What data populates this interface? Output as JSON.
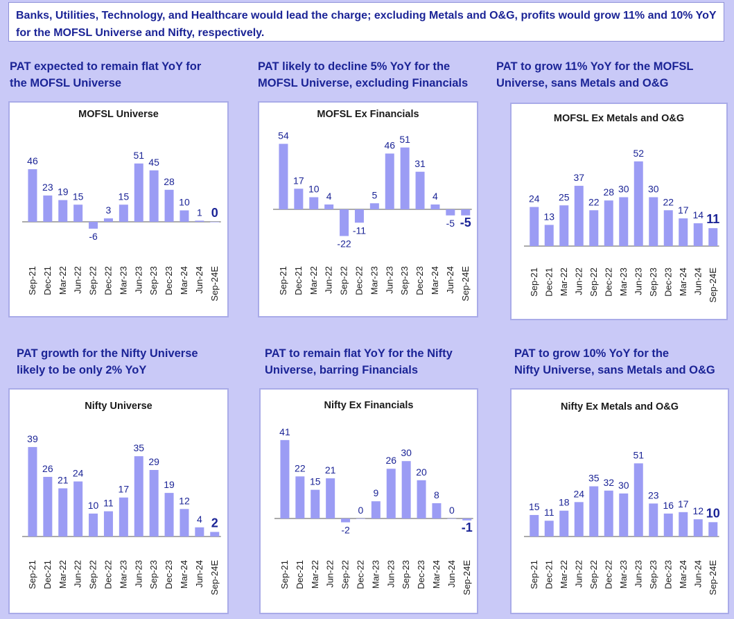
{
  "banner_text": "Banks, Utilities, Technology, and Healthcare would lead the charge; excluding Metals and O&G, profits would grow 11% and 10% YoY for the MOFSL Universe and Nifty, respectively.",
  "captions": [
    "PAT expected to remain flat YoY for\nthe MOFSL Universe",
    "PAT likely to decline 5% YoY for the\nMOFSL Universe, excluding Financials",
    "PAT to grow 11% YoY for the MOFSL\nUniverse, sans Metals and O&G",
    "PAT growth for the Nifty Universe\nlikely to be only 2% YoY",
    "PAT to remain flat YoY for the Nifty\nUniverse, barring Financials",
    "PAT to grow 10% YoY for the\nNifty  Universe, sans Metals and O&G"
  ],
  "colors": {
    "bar": "#9b9cf4",
    "label": "#1b2496",
    "axis": "#555555",
    "background": "#c9c9f7"
  },
  "chart_data": [
    {
      "type": "bar",
      "title": "MOFSL Universe",
      "categories": [
        "Sep-21",
        "Dec-21",
        "Mar-22",
        "Jun-22",
        "Sep-22",
        "Dec-22",
        "Mar-23",
        "Jun-23",
        "Sep-23",
        "Dec-23",
        "Mar-24",
        "Jun-24",
        "Sep-24E"
      ],
      "values": [
        46,
        23,
        19,
        15,
        -6,
        3,
        15,
        51,
        45,
        28,
        10,
        1,
        0
      ]
    },
    {
      "type": "bar",
      "title": "MOFSL Ex Financials",
      "categories": [
        "Sep-21",
        "Dec-21",
        "Mar-22",
        "Jun-22",
        "Sep-22",
        "Dec-22",
        "Mar-23",
        "Jun-23",
        "Sep-23",
        "Dec-23",
        "Mar-24",
        "Jun-24",
        "Sep-24E"
      ],
      "values": [
        54,
        17,
        10,
        4,
        -22,
        -11,
        5,
        46,
        51,
        31,
        4,
        -5,
        -5
      ]
    },
    {
      "type": "bar",
      "title": "MOFSL Ex Metals and O&G",
      "categories": [
        "Sep-21",
        "Dec-21",
        "Mar-22",
        "Jun-22",
        "Sep-22",
        "Dec-22",
        "Mar-23",
        "Jun-23",
        "Sep-23",
        "Dec-23",
        "Mar-24",
        "Jun-24",
        "Sep-24E"
      ],
      "values": [
        24,
        13,
        25,
        37,
        22,
        28,
        30,
        52,
        30,
        22,
        17,
        14,
        11
      ]
    },
    {
      "type": "bar",
      "title": "Nifty Universe",
      "categories": [
        "Sep-21",
        "Dec-21",
        "Mar-22",
        "Jun-22",
        "Sep-22",
        "Dec-22",
        "Mar-23",
        "Jun-23",
        "Sep-23",
        "Dec-23",
        "Mar-24",
        "Jun-24",
        "Sep-24E"
      ],
      "values": [
        39,
        26,
        21,
        24,
        10,
        11,
        17,
        35,
        29,
        19,
        12,
        4,
        2
      ]
    },
    {
      "type": "bar",
      "title": "Nifty Ex Financials",
      "categories": [
        "Sep-21",
        "Dec-21",
        "Mar-22",
        "Jun-22",
        "Sep-22",
        "Dec-22",
        "Mar-23",
        "Jun-23",
        "Sep-23",
        "Dec-23",
        "Mar-24",
        "Jun-24",
        "Sep-24E"
      ],
      "values": [
        41,
        22,
        15,
        21,
        -2,
        0,
        9,
        26,
        30,
        20,
        8,
        0,
        -1
      ]
    },
    {
      "type": "bar",
      "title": "Nifty Ex Metals and O&G",
      "categories": [
        "Sep-21",
        "Dec-21",
        "Mar-22",
        "Jun-22",
        "Sep-22",
        "Dec-22",
        "Mar-23",
        "Jun-23",
        "Sep-23",
        "Dec-23",
        "Mar-24",
        "Jun-24",
        "Sep-24E"
      ],
      "values": [
        15,
        11,
        18,
        24,
        35,
        32,
        30,
        51,
        23,
        16,
        17,
        12,
        10
      ]
    }
  ]
}
